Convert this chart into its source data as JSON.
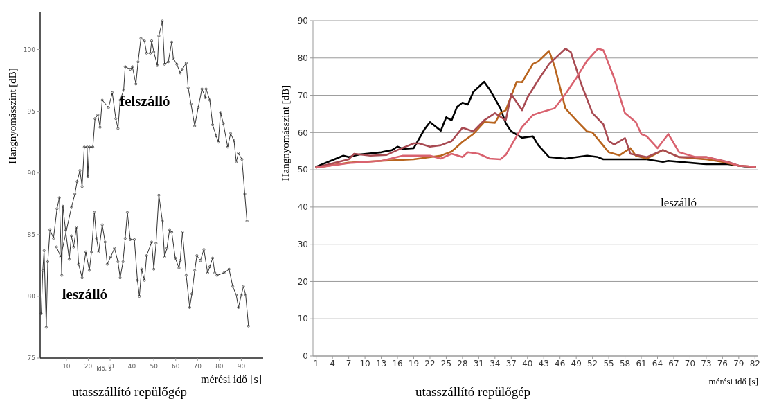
{
  "chart_data": [
    {
      "type": "line",
      "title": "utasszállító repülőgép",
      "xlabel": "mérési idő [s]",
      "ylabel": "Hangnyomásszint [dB]",
      "annotations": [
        "Idő, s"
      ],
      "xlim": [
        -2,
        100
      ],
      "ylim": [
        75,
        103
      ],
      "xticks": [
        10,
        20,
        30,
        40,
        50,
        60,
        70,
        80,
        90
      ],
      "yticks": [
        75,
        80,
        85,
        90,
        95,
        100
      ],
      "marker": "circle",
      "series": [
        {
          "name": "felszálló",
          "color": "#333333",
          "x": [
            5.5,
            7.4,
            12.3,
            13.9,
            14.9,
            16.2,
            17.2,
            18.2,
            19.5,
            19.8,
            20.5,
            22.1,
            23.1,
            24.4,
            25.4,
            26.4,
            29.3,
            31.0,
            32.6,
            33.6,
            34.6,
            36.2,
            36.9,
            39.2,
            40.2,
            41.8,
            42.8,
            44.1,
            45.7,
            46.7,
            48.4,
            49.0,
            50.0,
            51.6,
            52.3,
            53.9,
            54.9,
            56.6,
            58.2,
            58.9,
            60.5,
            62.1,
            63.1,
            64.8,
            65.7,
            67.0,
            68.7,
            70.3,
            72.0,
            73.6,
            73.9,
            75.6,
            76.9,
            78.5,
            79.5,
            80.5,
            81.8,
            83.8,
            85.1,
            86.7,
            87.7,
            88.7,
            90.3,
            91.6,
            92.6
          ],
          "values": [
            84.0,
            83.2,
            87.2,
            88.3,
            89.3,
            90.2,
            88.9,
            92.1,
            92.1,
            89.7,
            92.1,
            92.1,
            94.4,
            94.7,
            93.7,
            95.9,
            95.3,
            96.5,
            94.4,
            93.6,
            95.9,
            96.7,
            98.6,
            98.4,
            98.6,
            97.2,
            99.0,
            100.9,
            100.7,
            99.7,
            99.7,
            100.7,
            99.8,
            98.7,
            101.1,
            102.3,
            98.8,
            99.0,
            100.6,
            99.3,
            98.8,
            98.1,
            98.4,
            98.9,
            96.9,
            95.6,
            93.8,
            95.3,
            96.8,
            96.1,
            96.8,
            95.9,
            93.9,
            93.0,
            92.5,
            94.9,
            94.0,
            92.1,
            93.2,
            92.6,
            90.9,
            91.6,
            91.1,
            88.3,
            86.1
          ]
        },
        {
          "name": "leszálló",
          "color": "#333333",
          "x": [
            -1.5,
            -0.8,
            -0.2,
            0.8,
            1.5,
            2.5,
            4.1,
            5.7,
            6.8,
            7.9,
            8.4,
            9.6,
            11.3,
            12.3,
            13.3,
            14.6,
            15.6,
            17.2,
            18.9,
            20.5,
            21.5,
            22.8,
            23.8,
            24.8,
            26.4,
            27.7,
            28.7,
            30.3,
            32.0,
            33.6,
            34.6,
            35.9,
            36.9,
            37.9,
            39.2,
            41.1,
            42.5,
            43.4,
            44.4,
            45.7,
            46.7,
            49.0,
            50.0,
            51.0,
            52.3,
            53.9,
            54.9,
            56.0,
            57.2,
            58.2,
            59.8,
            61.5,
            62.1,
            63.1,
            64.8,
            66.4,
            67.4,
            68.7,
            69.7,
            71.3,
            72.9,
            74.6,
            75.6,
            76.9,
            77.9,
            78.9,
            82.1,
            84.4,
            86.1,
            87.7,
            88.7,
            90.0,
            91.0,
            92.0,
            93.3
          ],
          "values": [
            78.6,
            82.1,
            83.7,
            77.5,
            82.8,
            85.4,
            84.7,
            87.1,
            88.0,
            81.7,
            87.3,
            85.4,
            83.0,
            84.9,
            84.0,
            85.6,
            82.6,
            81.5,
            83.6,
            82.1,
            83.6,
            86.8,
            84.7,
            83.6,
            85.8,
            84.4,
            82.6,
            83.2,
            83.9,
            82.8,
            81.5,
            82.8,
            84.7,
            86.8,
            84.6,
            84.6,
            81.3,
            80.0,
            82.2,
            81.3,
            83.3,
            84.4,
            82.2,
            84.3,
            88.2,
            86.1,
            83.2,
            83.9,
            85.4,
            85.2,
            83.1,
            82.3,
            82.9,
            85.2,
            81.7,
            79.1,
            80.2,
            82.1,
            83.3,
            82.9,
            83.8,
            81.9,
            82.4,
            83.1,
            81.9,
            81.7,
            81.9,
            82.2,
            80.8,
            80.1,
            79.1,
            80.1,
            80.8,
            80.1,
            77.6
          ]
        }
      ]
    },
    {
      "type": "line",
      "title": "utasszállító repülőgép",
      "xlabel": "mérési idő [s]",
      "ylabel": "Hangnyomásszint [dB]",
      "annotations": [
        "leszálló"
      ],
      "xlim": [
        0.4,
        82.6
      ],
      "ylim": [
        0,
        90
      ],
      "xticks": [
        1,
        4,
        7,
        10,
        13,
        16,
        19,
        22,
        25,
        28,
        31,
        34,
        37,
        40,
        43,
        46,
        49,
        52,
        55,
        58,
        61,
        64,
        67,
        70,
        73,
        76,
        79,
        82
      ],
      "yticks": [
        0,
        10,
        20,
        30,
        40,
        50,
        60,
        70,
        80,
        90
      ],
      "grid": "y",
      "series": [
        {
          "color": "#000000",
          "x": [
            1,
            6,
            7,
            9,
            13,
            15,
            16,
            17,
            19,
            21,
            22,
            24,
            25,
            26,
            27,
            28,
            29,
            30,
            32,
            33,
            35,
            36,
            37,
            39,
            41,
            42,
            44,
            47,
            51,
            53,
            54,
            62,
            65,
            66,
            73,
            77,
            80,
            82
          ],
          "values": [
            50.8,
            53.8,
            53.4,
            54.1,
            54.7,
            55.3,
            56.2,
            55.6,
            55.8,
            60.9,
            62.8,
            60.5,
            64.1,
            63.3,
            66.9,
            68.0,
            67.5,
            70.9,
            73.6,
            71.6,
            66.5,
            62.5,
            60.3,
            58.6,
            59.0,
            56.6,
            53.4,
            53.0,
            53.8,
            53.4,
            52.8,
            52.8,
            52.1,
            52.4,
            51.5,
            51.5,
            50.9,
            50.8
          ]
        },
        {
          "color": "#b8641e",
          "x": [
            1,
            7,
            13,
            19,
            24,
            26,
            28,
            30,
            32,
            34,
            35,
            36,
            38,
            39,
            41,
            42,
            44,
            45,
            47,
            49,
            51,
            52,
            55,
            57,
            59,
            60,
            62,
            65,
            68,
            73,
            76,
            79,
            82
          ],
          "values": [
            50.6,
            51.9,
            52.4,
            52.8,
            53.8,
            54.9,
            57.5,
            59.6,
            62.8,
            62.6,
            65.2,
            66.0,
            73.6,
            73.5,
            78.4,
            79.1,
            81.9,
            77.8,
            66.5,
            63.3,
            60.3,
            60.0,
            54.7,
            53.9,
            55.8,
            53.8,
            53.0,
            55.3,
            53.4,
            52.8,
            52.1,
            51.1,
            50.8
          ]
        },
        {
          "color": "#a84a52",
          "x": [
            1,
            7,
            8,
            11,
            14,
            16,
            19,
            20,
            22,
            24,
            26,
            28,
            30,
            32,
            34,
            36,
            37,
            39,
            40,
            42,
            44,
            47,
            48,
            50,
            52,
            54,
            55,
            56,
            58,
            59,
            62,
            65,
            68,
            73,
            77,
            79,
            82
          ],
          "values": [
            50.6,
            52.8,
            54.3,
            53.8,
            54.0,
            55.3,
            57.1,
            57.1,
            56.2,
            56.6,
            57.7,
            61.3,
            60.3,
            63.3,
            65.2,
            63.3,
            70.3,
            66.0,
            69.4,
            74.1,
            78.4,
            82.5,
            81.6,
            72.7,
            65.2,
            62.2,
            57.7,
            56.8,
            58.5,
            54.3,
            53.4,
            55.3,
            53.4,
            53.4,
            52.1,
            51.1,
            50.8
          ]
        },
        {
          "color": "#d9626f",
          "x": [
            1,
            7,
            13,
            17,
            22,
            24,
            26,
            28,
            29,
            31,
            33,
            35,
            36,
            39,
            41,
            42,
            45,
            47,
            49,
            51,
            53,
            54,
            56,
            58,
            60,
            61,
            62,
            64,
            66,
            68,
            71,
            73,
            76,
            79,
            82
          ],
          "values": [
            50.6,
            51.8,
            52.4,
            53.8,
            53.8,
            53.0,
            54.3,
            53.4,
            54.7,
            54.3,
            53.0,
            52.8,
            54.0,
            61.5,
            64.7,
            65.2,
            66.5,
            70.3,
            74.6,
            79.3,
            82.5,
            82.1,
            74.6,
            65.2,
            62.8,
            59.6,
            59.0,
            55.8,
            59.6,
            54.7,
            53.4,
            53.4,
            52.4,
            51.1,
            50.8
          ]
        }
      ]
    }
  ]
}
